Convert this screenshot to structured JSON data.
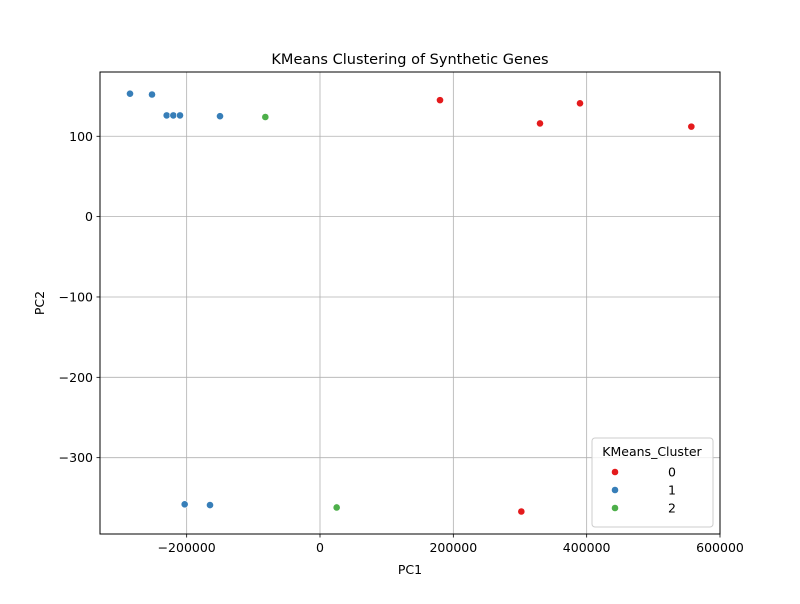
{
  "chart_data": {
    "type": "scatter",
    "title": "KMeans Clustering of Synthetic Genes",
    "xlabel": "PC1",
    "ylabel": "PC2",
    "xlim": [
      -330000,
      600000
    ],
    "ylim": [
      -395,
      180
    ],
    "xticks": [
      -200000,
      0,
      200000,
      400000,
      600000
    ],
    "xtick_labels": [
      "−200000",
      "0",
      "200000",
      "400000",
      "600000"
    ],
    "yticks": [
      -300,
      -200,
      -100,
      0,
      100
    ],
    "ytick_labels": [
      "−300",
      "−200",
      "−100",
      "0",
      "100"
    ],
    "grid": true,
    "legend": {
      "title": "KMeans_Cluster",
      "placement": "lower-right",
      "entries": [
        "0",
        "1",
        "2"
      ]
    },
    "series": [
      {
        "name": "0",
        "color": "#e41a1c",
        "points": [
          [
            180000,
            145
          ],
          [
            330000,
            116
          ],
          [
            390000,
            141
          ],
          [
            557000,
            112
          ],
          [
            302000,
            -367
          ]
        ]
      },
      {
        "name": "1",
        "color": "#377eb8",
        "points": [
          [
            -285000,
            153
          ],
          [
            -252000,
            152
          ],
          [
            -230000,
            126
          ],
          [
            -220000,
            126
          ],
          [
            -210000,
            126
          ],
          [
            -150000,
            125
          ],
          [
            -203000,
            -358
          ],
          [
            -165000,
            -359
          ]
        ]
      },
      {
        "name": "2",
        "color": "#4daf4a",
        "points": [
          [
            -82000,
            124
          ],
          [
            25000,
            -362
          ]
        ]
      }
    ]
  }
}
